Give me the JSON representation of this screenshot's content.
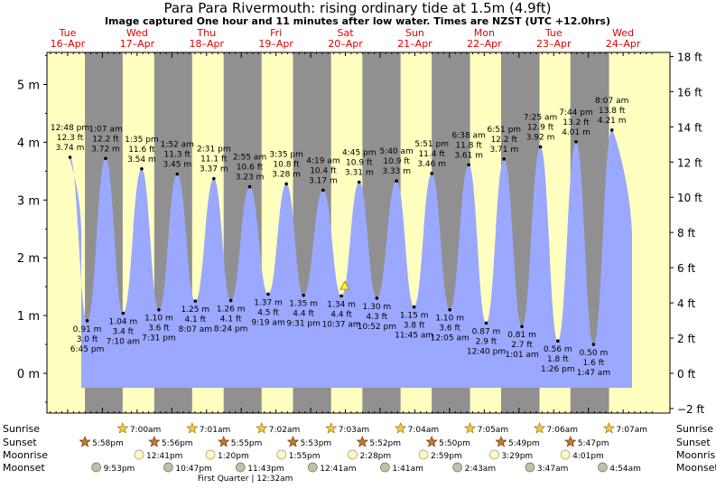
{
  "title": "Para Para Rivermouth: rising  ordinary tide at 1.5m (4.9ft)",
  "subtitle": "Image captured One hour and 11 minutes after low water. Times are NZST (UTC +12.0hrs)",
  "colors": {
    "day": "#ffffc0",
    "night": "#909090",
    "water": "#9aa8ff",
    "day_label": "#e00000"
  },
  "chart_data": {
    "type": "area",
    "title": "Para Para Rivermouth: rising  ordinary tide at 1.5m (4.9ft)",
    "subtitle": "Image captured One hour and 11 minutes after low water. Times are NZST (UTC +12.0hrs)",
    "y_left": {
      "unit": "m",
      "range": [
        -0.55,
        5.55
      ],
      "ticks": [
        0,
        1,
        2,
        3,
        4,
        5
      ],
      "tick_labels": [
        "0 m",
        "1 m",
        "2 m",
        "3 m",
        "4 m",
        "5 m"
      ]
    },
    "y_right": {
      "unit": "ft",
      "ticks": [
        -2,
        0,
        2,
        4,
        6,
        8,
        10,
        12,
        14,
        16,
        18
      ],
      "tick_labels": [
        "−2 ft",
        "0 ft",
        "2 ft",
        "4 ft",
        "6 ft",
        "8 ft",
        "10 ft",
        "12 ft",
        "14 ft",
        "16 ft",
        "18 ft"
      ]
    },
    "x_start_day": 16,
    "days": [
      {
        "dow": "Tue",
        "date": "16–Apr",
        "d": 16
      },
      {
        "dow": "Wed",
        "date": "17–Apr",
        "d": 17
      },
      {
        "dow": "Thu",
        "date": "18–Apr",
        "d": 18
      },
      {
        "dow": "Fri",
        "date": "19–Apr",
        "d": 19
      },
      {
        "dow": "Sat",
        "date": "20–Apr",
        "d": 20
      },
      {
        "dow": "Sun",
        "date": "21–Apr",
        "d": 21
      },
      {
        "dow": "Mon",
        "date": "22–Apr",
        "d": 22
      },
      {
        "dow": "Tue",
        "date": "23–Apr",
        "d": 23
      },
      {
        "dow": "Wed",
        "date": "24–Apr",
        "d": 24
      }
    ],
    "tides": [
      {
        "kind": "high",
        "day": 16,
        "time": "12:48 pm",
        "m": 3.74,
        "ft": "12.3 ft",
        "m_label": "3.74 m"
      },
      {
        "kind": "low",
        "day": 16,
        "time": "6:45 pm",
        "m": 0.91,
        "ft": "3.0 ft",
        "m_label": "0.91 m"
      },
      {
        "kind": "high",
        "day": 17,
        "time": "1:07 am",
        "m": 3.72,
        "ft": "12.2 ft",
        "m_label": "3.72 m"
      },
      {
        "kind": "low",
        "day": 17,
        "time": "7:10 am",
        "m": 1.04,
        "ft": "3.4 ft",
        "m_label": "1.04 m"
      },
      {
        "kind": "high",
        "day": 17,
        "time": "1:35 pm",
        "m": 3.54,
        "ft": "11.6 ft",
        "m_label": "3.54 m"
      },
      {
        "kind": "low",
        "day": 17,
        "time": "7:31 pm",
        "m": 1.1,
        "ft": "3.6 ft",
        "m_label": "1.10 m"
      },
      {
        "kind": "high",
        "day": 18,
        "time": "1:52 am",
        "m": 3.45,
        "ft": "11.3 ft",
        "m_label": "3.45 m"
      },
      {
        "kind": "low",
        "day": 18,
        "time": "8:07 am",
        "m": 1.25,
        "ft": "4.1 ft",
        "m_label": "1.25 m"
      },
      {
        "kind": "high",
        "day": 18,
        "time": "2:31 pm",
        "m": 3.37,
        "ft": "11.1 ft",
        "m_label": "3.37 m"
      },
      {
        "kind": "low",
        "day": 18,
        "time": "8:24 pm",
        "m": 1.26,
        "ft": "4.1 ft",
        "m_label": "1.26 m"
      },
      {
        "kind": "high",
        "day": 19,
        "time": "2:55 am",
        "m": 3.23,
        "ft": "10.6 ft",
        "m_label": "3.23 m"
      },
      {
        "kind": "low",
        "day": 19,
        "time": "9:19 am",
        "m": 1.37,
        "ft": "4.5 ft",
        "m_label": "1.37 m"
      },
      {
        "kind": "high",
        "day": 19,
        "time": "3:35 pm",
        "m": 3.28,
        "ft": "10.8 ft",
        "m_label": "3.28 m"
      },
      {
        "kind": "low",
        "day": 19,
        "time": "9:31 pm",
        "m": 1.35,
        "ft": "4.4 ft",
        "m_label": "1.35 m"
      },
      {
        "kind": "high",
        "day": 20,
        "time": "4:19 am",
        "m": 3.17,
        "ft": "10.4 ft",
        "m_label": "3.17 m"
      },
      {
        "kind": "low",
        "day": 20,
        "time": "10:37 am",
        "m": 1.34,
        "ft": "4.4 ft",
        "m_label": "1.34 m"
      },
      {
        "kind": "high",
        "day": 20,
        "time": "4:45 pm",
        "m": 3.31,
        "ft": "10.9 ft",
        "m_label": "3.31 m"
      },
      {
        "kind": "low",
        "day": 20,
        "time": "10:52 pm",
        "m": 1.3,
        "ft": "4.3 ft",
        "m_label": "1.30 m"
      },
      {
        "kind": "high",
        "day": 21,
        "time": "5:40 am",
        "m": 3.33,
        "ft": "10.9 ft",
        "m_label": "3.33 m"
      },
      {
        "kind": "low",
        "day": 21,
        "time": "11:45 am",
        "m": 1.15,
        "ft": "3.8 ft",
        "m_label": "1.15 m"
      },
      {
        "kind": "high",
        "day": 21,
        "time": "5:51 pm",
        "m": 3.46,
        "ft": "11.4 ft",
        "m_label": "3.46 m"
      },
      {
        "kind": "low",
        "day": 22,
        "time": "12:05 am",
        "m": 1.1,
        "ft": "3.6 ft",
        "m_label": "1.10 m"
      },
      {
        "kind": "high",
        "day": 22,
        "time": "6:38 am",
        "m": 3.61,
        "ft": "11.8 ft",
        "m_label": "3.61 m"
      },
      {
        "kind": "low",
        "day": 22,
        "time": "12:40 pm",
        "m": 0.87,
        "ft": "2.9 ft",
        "m_label": "0.87 m"
      },
      {
        "kind": "high",
        "day": 22,
        "time": "6:51 pm",
        "m": 3.71,
        "ft": "12.2 ft",
        "m_label": "3.71 m"
      },
      {
        "kind": "low",
        "day": 23,
        "time": "1:01 am",
        "m": 0.81,
        "ft": "2.7 ft",
        "m_label": "0.81 m"
      },
      {
        "kind": "high",
        "day": 23,
        "time": "7:25 am",
        "m": 3.92,
        "ft": "12.9 ft",
        "m_label": "3.92 m"
      },
      {
        "kind": "low",
        "day": 23,
        "time": "1:26 pm",
        "m": 0.56,
        "ft": "1.8 ft",
        "m_label": "0.56 m"
      },
      {
        "kind": "high",
        "day": 23,
        "time": "7:44 pm",
        "m": 4.01,
        "ft": "13.2 ft",
        "m_label": "4.01 m"
      },
      {
        "kind": "low",
        "day": 24,
        "time": "1:47 am",
        "m": 0.5,
        "ft": "1.6 ft",
        "m_label": "0.50 m"
      },
      {
        "kind": "high",
        "day": 24,
        "time": "8:07 am",
        "m": 4.21,
        "ft": "13.8 ft",
        "m_label": "4.21 m"
      }
    ],
    "current": {
      "day": 20,
      "time": "11:48 am",
      "m": 1.5
    },
    "sun": [
      {
        "day": 16,
        "rise": null,
        "set": "5:58pm"
      },
      {
        "day": 17,
        "rise": "7:00am",
        "set": "5:56pm"
      },
      {
        "day": 18,
        "rise": "7:01am",
        "set": "5:55pm"
      },
      {
        "day": 19,
        "rise": "7:02am",
        "set": "5:53pm"
      },
      {
        "day": 20,
        "rise": "7:03am",
        "set": "5:52pm"
      },
      {
        "day": 21,
        "rise": "7:04am",
        "set": "5:50pm"
      },
      {
        "day": 22,
        "rise": "7:05am",
        "set": "5:49pm"
      },
      {
        "day": 23,
        "rise": "7:06am",
        "set": "5:47pm"
      },
      {
        "day": 24,
        "rise": "7:07am",
        "set": null
      }
    ],
    "moonrise": [
      {
        "day": 17,
        "time": "12:41pm"
      },
      {
        "day": 18,
        "time": "1:20pm"
      },
      {
        "day": 19,
        "time": "1:55pm"
      },
      {
        "day": 20,
        "time": "2:28pm"
      },
      {
        "day": 21,
        "time": "2:59pm"
      },
      {
        "day": 22,
        "time": "3:29pm"
      },
      {
        "day": 23,
        "time": "4:01pm"
      }
    ],
    "moonset": [
      {
        "day": 16,
        "time": "9:53pm"
      },
      {
        "day": 17,
        "time": "10:47pm"
      },
      {
        "day": 18,
        "time": "11:43pm"
      },
      {
        "day": 20,
        "time": "12:41am"
      },
      {
        "day": 21,
        "time": "1:41am"
      },
      {
        "day": 22,
        "time": "2:43am"
      },
      {
        "day": 23,
        "time": "3:47am"
      },
      {
        "day": 24,
        "time": "4:54am"
      }
    ],
    "moon_phase": {
      "day": 19,
      "time": "12:32am",
      "label": "First Quarter | 12:32am"
    },
    "row_labels": {
      "sunrise": "Sunrise",
      "sunset": "Sunset",
      "moonrise": "Moonrise",
      "moonset": "Moonset"
    }
  }
}
